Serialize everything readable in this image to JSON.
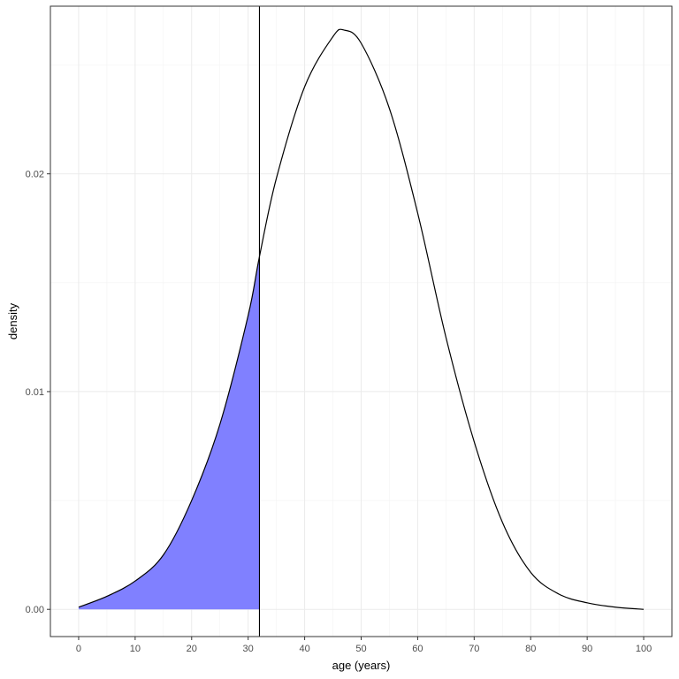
{
  "chart_data": {
    "type": "area",
    "xlabel": "age (years)",
    "ylabel": "density",
    "xlim": [
      -5,
      105
    ],
    "ylim": [
      -0.00125,
      0.0277
    ],
    "x_ticks": [
      0,
      10,
      20,
      30,
      40,
      50,
      60,
      70,
      80,
      90,
      100
    ],
    "x_tick_labels": [
      "0",
      "10",
      "20",
      "30",
      "40",
      "50",
      "60",
      "70",
      "80",
      "90",
      "100"
    ],
    "y_ticks": [
      0.0,
      0.01,
      0.02
    ],
    "y_tick_labels": [
      "0.00",
      "0.01",
      "0.02"
    ],
    "grid": true,
    "series": [
      {
        "style": "line",
        "color": "#000000",
        "x": [
          0,
          5,
          10,
          15,
          20,
          25,
          30,
          32,
          35,
          40,
          45,
          47,
          50,
          55,
          60,
          65,
          70,
          75,
          80,
          85,
          90,
          95,
          100
        ],
        "y": [
          0.0001,
          0.0006,
          0.0013,
          0.0025,
          0.005,
          0.0085,
          0.0135,
          0.0162,
          0.0198,
          0.024,
          0.0263,
          0.0266,
          0.026,
          0.023,
          0.0182,
          0.0125,
          0.0077,
          0.004,
          0.0017,
          0.0007,
          0.0003,
          0.0001,
          0.0
        ]
      }
    ],
    "shaded_region": {
      "x_from": 0,
      "x_to": 32,
      "color": "#8080ff"
    },
    "vertical_line": {
      "x": 32,
      "color": "#000000"
    }
  }
}
